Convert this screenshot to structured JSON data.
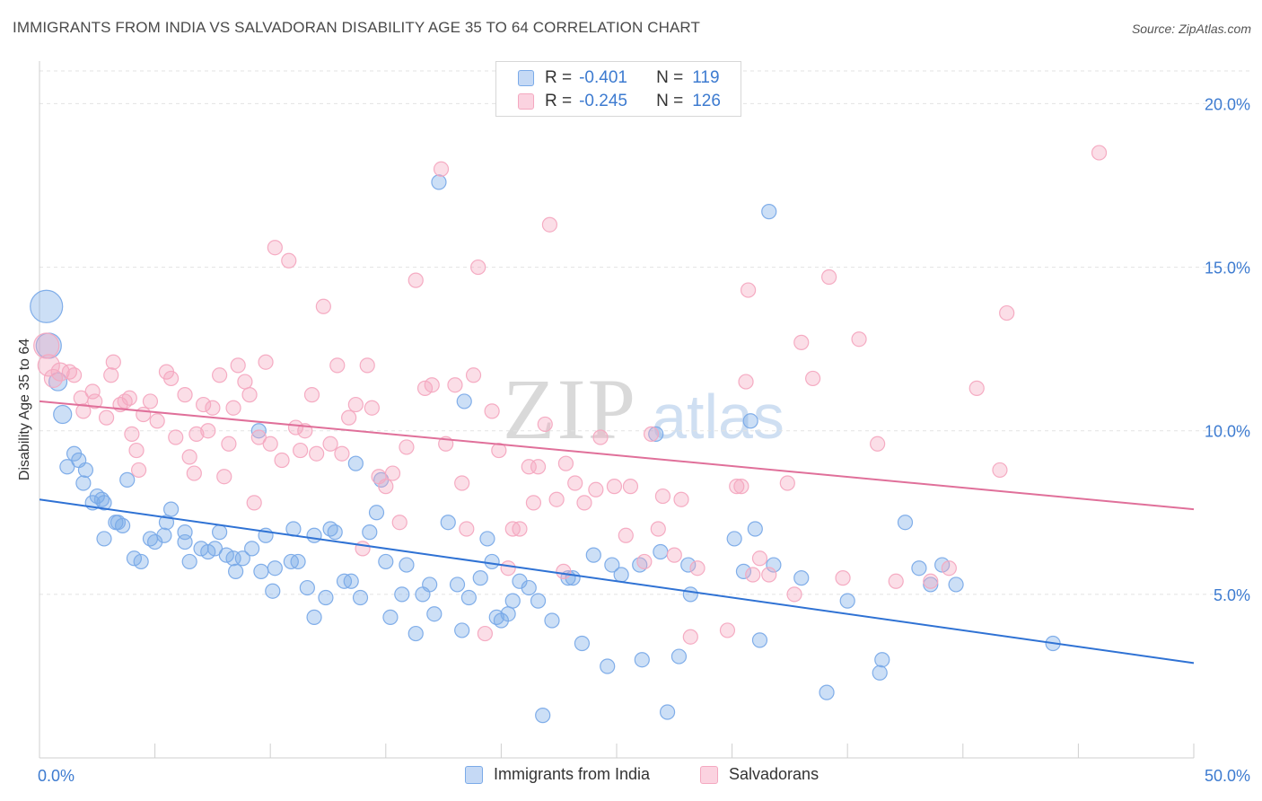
{
  "header": {
    "title": "IMMIGRANTS FROM INDIA VS SALVADORAN DISABILITY AGE 35 TO 64 CORRELATION CHART",
    "source": "Source: ZipAtlas.com"
  },
  "watermark": {
    "zip": "ZIP",
    "atlas": "atlas"
  },
  "legend": {
    "rows": [
      {
        "r_label": "R =",
        "r_value": "-0.401",
        "n_label": "N =",
        "n_value": "119"
      },
      {
        "r_label": "R =",
        "r_value": "-0.245",
        "n_label": "N =",
        "n_value": "126"
      }
    ]
  },
  "chart_data": {
    "type": "scatter",
    "title": "IMMIGRANTS FROM INDIA VS SALVADORAN DISABILITY AGE 35 TO 64 CORRELATION CHART",
    "xlabel": "",
    "ylabel": "Disability Age 35 to 64",
    "xlim": [
      0,
      50
    ],
    "ylim": [
      0,
      21
    ],
    "x_tick_labels": [
      "0.0%",
      "50.0%"
    ],
    "y_ticks": [
      5,
      10,
      15,
      20
    ],
    "y_tick_labels": [
      "5.0%",
      "10.0%",
      "15.0%",
      "20.0%"
    ],
    "grid": "horizontal dashed",
    "legend_placement": "top-center and bottom",
    "series": [
      {
        "name": "Immigrants from India",
        "color": "#7aaae8",
        "line_color": "#2f72d4",
        "r": -0.401,
        "n": 119,
        "trend": {
          "x0": 0,
          "y0": 7.9,
          "x1": 50,
          "y1": 2.9
        },
        "points": [
          [
            0.3,
            13.8,
            18
          ],
          [
            0.4,
            12.6,
            14
          ],
          [
            0.8,
            11.5,
            10
          ],
          [
            1.0,
            10.5,
            10
          ],
          [
            1.5,
            9.3,
            8
          ],
          [
            1.7,
            9.1,
            8
          ],
          [
            1.2,
            8.9,
            8
          ],
          [
            2.0,
            8.8,
            8
          ],
          [
            1.9,
            8.4,
            8
          ],
          [
            2.5,
            8.0,
            8
          ],
          [
            2.3,
            7.8,
            8
          ],
          [
            2.8,
            7.8,
            8
          ],
          [
            2.7,
            7.9,
            8
          ],
          [
            3.8,
            8.5,
            8
          ],
          [
            3.6,
            7.1,
            8
          ],
          [
            3.3,
            7.2,
            8
          ],
          [
            2.8,
            6.7,
            8
          ],
          [
            3.4,
            7.2,
            8
          ],
          [
            4.1,
            6.1,
            8
          ],
          [
            4.4,
            6.0,
            8
          ],
          [
            4.8,
            6.7,
            8
          ],
          [
            5.0,
            6.6,
            8
          ],
          [
            5.5,
            7.2,
            8
          ],
          [
            5.7,
            7.6,
            8
          ],
          [
            5.4,
            6.8,
            8
          ],
          [
            6.3,
            6.6,
            8
          ],
          [
            6.5,
            6.0,
            8
          ],
          [
            6.3,
            6.9,
            8
          ],
          [
            7.0,
            6.4,
            8
          ],
          [
            7.3,
            6.3,
            8
          ],
          [
            7.6,
            6.4,
            8
          ],
          [
            7.8,
            6.9,
            8
          ],
          [
            8.1,
            6.2,
            8
          ],
          [
            8.4,
            6.1,
            8
          ],
          [
            8.5,
            5.7,
            8
          ],
          [
            8.8,
            6.1,
            8
          ],
          [
            9.2,
            6.4,
            8
          ],
          [
            9.6,
            5.7,
            8
          ],
          [
            9.5,
            10.0,
            8
          ],
          [
            9.8,
            6.8,
            8
          ],
          [
            10.2,
            5.8,
            8
          ],
          [
            10.1,
            5.1,
            8
          ],
          [
            10.9,
            6.0,
            8
          ],
          [
            11.0,
            7.0,
            8
          ],
          [
            11.2,
            6.0,
            8
          ],
          [
            11.6,
            5.2,
            8
          ],
          [
            11.9,
            6.8,
            8
          ],
          [
            11.9,
            4.3,
            8
          ],
          [
            12.4,
            4.9,
            8
          ],
          [
            12.6,
            7.0,
            8
          ],
          [
            12.8,
            6.9,
            8
          ],
          [
            13.2,
            5.4,
            8
          ],
          [
            13.5,
            5.4,
            8
          ],
          [
            13.7,
            9.0,
            8
          ],
          [
            13.9,
            4.9,
            8
          ],
          [
            14.3,
            6.9,
            8
          ],
          [
            14.6,
            7.5,
            8
          ],
          [
            14.8,
            8.5,
            8
          ],
          [
            15.0,
            6.0,
            8
          ],
          [
            15.2,
            4.3,
            8
          ],
          [
            15.7,
            5.0,
            8
          ],
          [
            15.9,
            5.9,
            8
          ],
          [
            16.3,
            3.8,
            8
          ],
          [
            16.6,
            5.0,
            8
          ],
          [
            16.9,
            5.3,
            8
          ],
          [
            17.1,
            4.4,
            8
          ],
          [
            17.3,
            17.6,
            8
          ],
          [
            17.7,
            7.2,
            8
          ],
          [
            18.1,
            5.3,
            8
          ],
          [
            18.6,
            4.9,
            8
          ],
          [
            18.4,
            10.9,
            8
          ],
          [
            18.3,
            3.9,
            8
          ],
          [
            19.1,
            5.5,
            8
          ],
          [
            19.4,
            6.7,
            8
          ],
          [
            19.6,
            6.0,
            8
          ],
          [
            19.8,
            4.3,
            8
          ],
          [
            20.0,
            4.2,
            8
          ],
          [
            20.3,
            4.4,
            8
          ],
          [
            20.5,
            4.8,
            8
          ],
          [
            20.8,
            5.4,
            8
          ],
          [
            21.2,
            5.2,
            8
          ],
          [
            21.6,
            4.8,
            8
          ],
          [
            22.2,
            4.2,
            8
          ],
          [
            22.9,
            5.5,
            8
          ],
          [
            23.1,
            5.5,
            8
          ],
          [
            21.8,
            1.3,
            8
          ],
          [
            23.5,
            3.5,
            8
          ],
          [
            24.0,
            6.2,
            8
          ],
          [
            24.6,
            2.8,
            8
          ],
          [
            24.8,
            5.9,
            8
          ],
          [
            25.2,
            5.6,
            8
          ],
          [
            26.0,
            5.9,
            8
          ],
          [
            26.1,
            3.0,
            8
          ],
          [
            26.7,
            9.9,
            8
          ],
          [
            26.9,
            6.3,
            8
          ],
          [
            27.7,
            3.1,
            8
          ],
          [
            27.2,
            1.4,
            8
          ],
          [
            28.1,
            5.9,
            8
          ],
          [
            28.2,
            5.0,
            8
          ],
          [
            30.1,
            6.7,
            8
          ],
          [
            30.5,
            5.7,
            8
          ],
          [
            30.8,
            10.3,
            8
          ],
          [
            31.0,
            7.0,
            8
          ],
          [
            31.2,
            3.6,
            8
          ],
          [
            31.6,
            16.7,
            8
          ],
          [
            31.8,
            5.9,
            8
          ],
          [
            33.0,
            5.5,
            8
          ],
          [
            34.1,
            2.0,
            8
          ],
          [
            35.0,
            4.8,
            8
          ],
          [
            36.4,
            2.6,
            8
          ],
          [
            36.5,
            3.0,
            8
          ],
          [
            37.5,
            7.2,
            8
          ],
          [
            38.1,
            5.8,
            8
          ],
          [
            38.6,
            5.3,
            8
          ],
          [
            39.1,
            5.9,
            8
          ],
          [
            39.7,
            5.3,
            8
          ],
          [
            43.9,
            3.5,
            8
          ]
        ]
      },
      {
        "name": "Salvadorans",
        "color": "#f4a8c0",
        "line_color": "#e0709a",
        "r": -0.245,
        "n": 126,
        "trend": {
          "x0": 0,
          "y0": 10.9,
          "x1": 50,
          "y1": 7.6
        },
        "points": [
          [
            0.3,
            12.6,
            14
          ],
          [
            0.4,
            12.0,
            12
          ],
          [
            0.6,
            11.6,
            10
          ],
          [
            0.9,
            11.8,
            10
          ],
          [
            1.3,
            11.8,
            8
          ],
          [
            1.5,
            11.7,
            8
          ],
          [
            1.8,
            11.0,
            8
          ],
          [
            1.9,
            10.6,
            8
          ],
          [
            2.3,
            11.2,
            8
          ],
          [
            2.4,
            10.9,
            8
          ],
          [
            2.9,
            10.4,
            8
          ],
          [
            3.2,
            12.1,
            8
          ],
          [
            3.1,
            11.7,
            8
          ],
          [
            3.5,
            10.8,
            8
          ],
          [
            3.7,
            10.9,
            8
          ],
          [
            3.9,
            11.0,
            8
          ],
          [
            4.0,
            9.9,
            8
          ],
          [
            4.2,
            9.4,
            8
          ],
          [
            4.3,
            8.8,
            8
          ],
          [
            4.5,
            10.5,
            8
          ],
          [
            4.8,
            10.9,
            8
          ],
          [
            5.1,
            10.3,
            8
          ],
          [
            5.5,
            11.8,
            8
          ],
          [
            5.7,
            11.6,
            8
          ],
          [
            5.9,
            9.8,
            8
          ],
          [
            6.3,
            11.1,
            8
          ],
          [
            6.5,
            9.2,
            8
          ],
          [
            6.7,
            8.7,
            8
          ],
          [
            6.8,
            9.9,
            8
          ],
          [
            7.1,
            10.8,
            8
          ],
          [
            7.3,
            10.0,
            8
          ],
          [
            7.5,
            10.7,
            8
          ],
          [
            7.8,
            11.7,
            8
          ],
          [
            8.0,
            8.6,
            8
          ],
          [
            8.2,
            9.6,
            8
          ],
          [
            8.4,
            10.7,
            8
          ],
          [
            8.6,
            12.0,
            8
          ],
          [
            8.9,
            11.5,
            8
          ],
          [
            9.1,
            11.1,
            8
          ],
          [
            9.3,
            7.8,
            8
          ],
          [
            9.5,
            9.8,
            8
          ],
          [
            9.8,
            12.1,
            8
          ],
          [
            10.0,
            9.6,
            8
          ],
          [
            10.2,
            15.6,
            8
          ],
          [
            10.5,
            9.1,
            8
          ],
          [
            10.8,
            15.2,
            8
          ],
          [
            11.1,
            10.1,
            8
          ],
          [
            11.3,
            9.4,
            8
          ],
          [
            11.5,
            10.0,
            8
          ],
          [
            11.8,
            11.1,
            8
          ],
          [
            12.0,
            9.3,
            8
          ],
          [
            12.3,
            13.8,
            8
          ],
          [
            12.6,
            9.6,
            8
          ],
          [
            12.9,
            12.0,
            8
          ],
          [
            13.1,
            9.3,
            8
          ],
          [
            13.4,
            10.4,
            8
          ],
          [
            13.7,
            10.8,
            8
          ],
          [
            14.0,
            6.4,
            8
          ],
          [
            14.2,
            12.0,
            8
          ],
          [
            14.4,
            10.7,
            8
          ],
          [
            14.7,
            8.6,
            8
          ],
          [
            15.0,
            8.3,
            8
          ],
          [
            15.3,
            8.7,
            8
          ],
          [
            15.6,
            7.2,
            8
          ],
          [
            15.9,
            9.5,
            8
          ],
          [
            16.3,
            14.6,
            8
          ],
          [
            16.7,
            11.3,
            8
          ],
          [
            17.0,
            11.4,
            8
          ],
          [
            17.4,
            18.0,
            8
          ],
          [
            17.6,
            9.6,
            8
          ],
          [
            18.0,
            11.4,
            8
          ],
          [
            18.3,
            8.4,
            8
          ],
          [
            18.5,
            7.0,
            8
          ],
          [
            18.8,
            11.7,
            8
          ],
          [
            19.0,
            15.0,
            8
          ],
          [
            19.3,
            3.8,
            8
          ],
          [
            19.6,
            10.6,
            8
          ],
          [
            19.9,
            9.4,
            8
          ],
          [
            20.3,
            5.8,
            8
          ],
          [
            20.5,
            7.0,
            8
          ],
          [
            20.8,
            7.0,
            8
          ],
          [
            21.2,
            8.9,
            8
          ],
          [
            21.4,
            7.8,
            8
          ],
          [
            21.6,
            8.9,
            8
          ],
          [
            21.9,
            10.2,
            8
          ],
          [
            22.1,
            16.3,
            8
          ],
          [
            22.4,
            7.9,
            8
          ],
          [
            22.7,
            5.7,
            8
          ],
          [
            22.8,
            9.0,
            8
          ],
          [
            23.2,
            8.4,
            8
          ],
          [
            23.6,
            7.8,
            8
          ],
          [
            24.1,
            8.2,
            8
          ],
          [
            24.3,
            9.8,
            8
          ],
          [
            24.9,
            8.3,
            8
          ],
          [
            25.4,
            6.8,
            8
          ],
          [
            25.6,
            8.3,
            8
          ],
          [
            26.2,
            6.0,
            8
          ],
          [
            26.5,
            9.9,
            8
          ],
          [
            26.8,
            7.0,
            8
          ],
          [
            27.0,
            8.0,
            8
          ],
          [
            27.5,
            6.2,
            8
          ],
          [
            27.8,
            7.9,
            8
          ],
          [
            28.2,
            3.7,
            8
          ],
          [
            28.5,
            5.8,
            8
          ],
          [
            29.8,
            3.9,
            8
          ],
          [
            30.2,
            8.3,
            8
          ],
          [
            30.4,
            8.3,
            8
          ],
          [
            30.6,
            11.5,
            8
          ],
          [
            30.7,
            14.3,
            8
          ],
          [
            30.9,
            5.6,
            8
          ],
          [
            31.2,
            6.1,
            8
          ],
          [
            31.6,
            5.6,
            8
          ],
          [
            32.4,
            8.4,
            8
          ],
          [
            32.7,
            5.0,
            8
          ],
          [
            33.0,
            12.7,
            8
          ],
          [
            33.5,
            11.6,
            8
          ],
          [
            34.2,
            14.7,
            8
          ],
          [
            34.8,
            5.5,
            8
          ],
          [
            35.5,
            12.8,
            8
          ],
          [
            36.3,
            9.6,
            8
          ],
          [
            37.1,
            5.4,
            8
          ],
          [
            38.6,
            5.4,
            8
          ],
          [
            39.4,
            5.8,
            8
          ],
          [
            40.6,
            11.3,
            8
          ],
          [
            41.6,
            8.8,
            8
          ],
          [
            41.9,
            13.6,
            8
          ],
          [
            45.9,
            18.5,
            8
          ]
        ]
      }
    ]
  },
  "bottom_legend": {
    "items": [
      "Immigrants from India",
      "Salvadorans"
    ]
  }
}
